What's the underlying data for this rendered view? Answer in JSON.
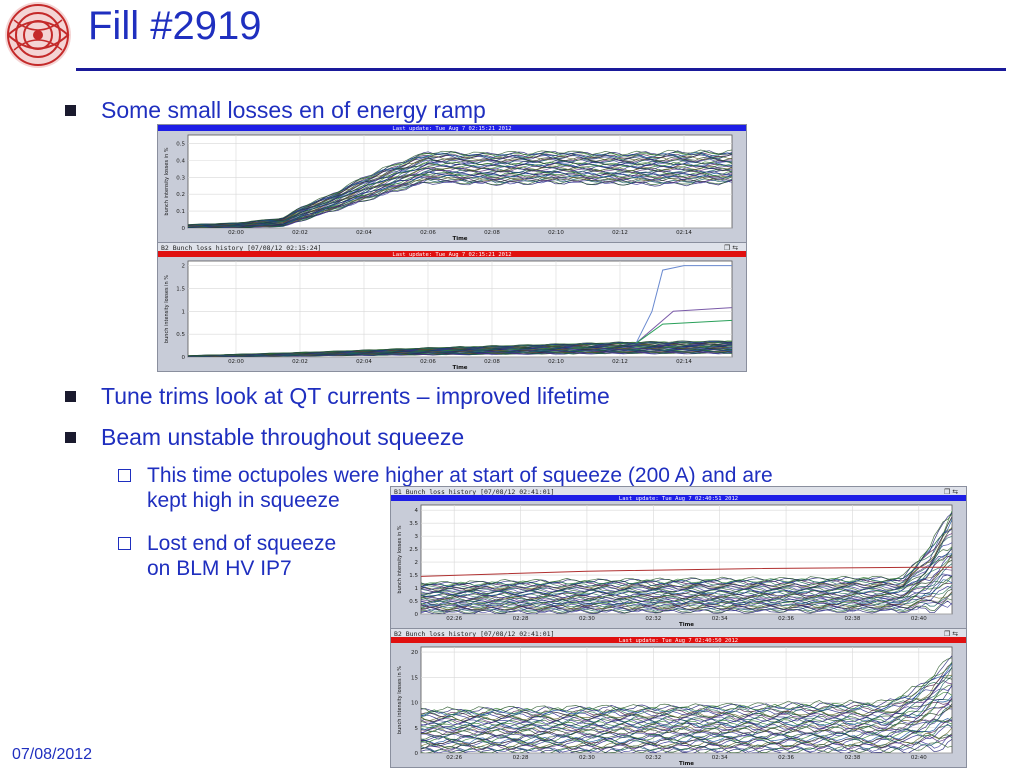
{
  "slide": {
    "title": "Fill #2919",
    "date": "07/08/2012",
    "bullets": [
      {
        "text": "Some small losses en of energy ramp"
      },
      {
        "text": "Tune trims look at QT currents – improved lifetime"
      },
      {
        "text": "Beam unstable throughout squeeze"
      }
    ],
    "subbullets": [
      {
        "line1": "This time octupoles were higher at start of squeeze (200 A) and are",
        "line2": "kept high in squeeze"
      },
      {
        "line1": "Lost end of squeeze",
        "line2": "on BLM HV IP7"
      }
    ]
  },
  "chart_data": [
    {
      "type": "line",
      "panel_title": "",
      "update_label": "Last update: Tue Aug  7 02:15:21 2012",
      "update_bar_color": "#1e1ee6",
      "ylabel": "bunch intensity losses in %",
      "xlabel": "Time",
      "x_ticks": [
        "02:00",
        "02:02",
        "02:04",
        "02:06",
        "02:08",
        "02:10",
        "02:12",
        "02:14"
      ],
      "y_ticks": [
        "0",
        "0.1",
        "0.2",
        "0.3",
        "0.4",
        "0.5"
      ],
      "ylim": [
        0,
        0.55
      ],
      "x_range": [
        "01:58:30",
        "02:15:30"
      ],
      "envelope": {
        "x": [
          "01:58:30",
          "02:00:00",
          "02:01:30",
          "02:02:00",
          "02:03:00",
          "02:04:00",
          "02:05:00",
          "02:06:00",
          "02:08:00",
          "02:10:00",
          "02:12:00",
          "02:14:00",
          "02:15:30"
        ],
        "upper": [
          0.02,
          0.03,
          0.06,
          0.12,
          0.2,
          0.3,
          0.38,
          0.45,
          0.44,
          0.45,
          0.44,
          0.45,
          0.45
        ],
        "lower": [
          0.0,
          0.0,
          0.01,
          0.04,
          0.1,
          0.16,
          0.22,
          0.27,
          0.26,
          0.27,
          0.26,
          0.26,
          0.27
        ]
      },
      "grid": true
    },
    {
      "type": "line",
      "panel_title": "B2 Bunch loss history  [07/08/12 02:15:24]",
      "update_label": "Last update: Tue Aug  7 02:15:21 2012",
      "update_bar_color": "#e01010",
      "ylabel": "bunch intensity losses in %",
      "xlabel": "Time",
      "x_ticks": [
        "02:00",
        "02:02",
        "02:04",
        "02:06",
        "02:08",
        "02:10",
        "02:12",
        "02:14"
      ],
      "y_ticks": [
        "0",
        "0.5",
        "1",
        "1.5",
        "2"
      ],
      "ylim": [
        0,
        2.1
      ],
      "x_range": [
        "01:58:30",
        "02:15:30"
      ],
      "envelope": {
        "x": [
          "01:58:30",
          "02:02:00",
          "02:06:00",
          "02:10:00",
          "02:12:00",
          "02:15:30"
        ],
        "upper": [
          0.03,
          0.1,
          0.2,
          0.28,
          0.32,
          0.35
        ],
        "lower": [
          0.0,
          0.02,
          0.05,
          0.07,
          0.08,
          0.08
        ]
      },
      "highlighted_series": [
        {
          "color": "#6a8ad0",
          "x": [
            "02:12:30",
            "02:13:00",
            "02:13:20",
            "02:14:00",
            "02:15:30"
          ],
          "y": [
            0.3,
            1.0,
            1.9,
            2.0,
            2.0
          ]
        },
        {
          "color": "#7a5aa8",
          "x": [
            "02:12:30",
            "02:13:10",
            "02:13:40",
            "02:15:30"
          ],
          "y": [
            0.3,
            0.7,
            1.0,
            1.08
          ]
        },
        {
          "color": "#2aa05a",
          "x": [
            "02:12:30",
            "02:13:20",
            "02:15:30"
          ],
          "y": [
            0.3,
            0.72,
            0.8
          ]
        }
      ],
      "grid": true
    },
    {
      "type": "line",
      "panel_title": "B1 Bunch loss history  [07/08/12 02:41:01]",
      "update_label": "Last update: Tue Aug  7 02:40:51 2012",
      "update_bar_color": "#1e1ee6",
      "ylabel": "bunch intensity losses in %",
      "xlabel": "Time",
      "x_ticks": [
        "02:26",
        "02:28",
        "02:30",
        "02:32",
        "02:34",
        "02:36",
        "02:38",
        "02:40"
      ],
      "y_ticks": [
        "0",
        "0.5",
        "1",
        "1.5",
        "2",
        "2.5",
        "3",
        "3.5",
        "4"
      ],
      "ylim": [
        0,
        4.2
      ],
      "x_range": [
        "02:25:00",
        "02:41:00"
      ],
      "envelope": {
        "x": [
          "02:25:00",
          "02:30:00",
          "02:35:00",
          "02:39:30",
          "02:40:20",
          "02:41:00"
        ],
        "upper": [
          1.2,
          1.3,
          1.35,
          1.4,
          2.6,
          4.0
        ],
        "lower": [
          0.05,
          0.08,
          0.1,
          0.12,
          0.2,
          0.3
        ]
      },
      "highlighted_series": [
        {
          "color": "#b03030",
          "x": [
            "02:25:00",
            "02:30:00",
            "02:35:00",
            "02:40:00",
            "02:41:00"
          ],
          "y": [
            1.45,
            1.65,
            1.75,
            1.8,
            1.8
          ]
        }
      ],
      "grid": true
    },
    {
      "type": "line",
      "panel_title": "B2 Bunch loss history  [07/08/12 02:41:01]",
      "update_label": "Last update: Tue Aug  7 02:40:50 2012",
      "update_bar_color": "#e01010",
      "ylabel": "bunch intensity losses in %",
      "xlabel": "Time",
      "x_ticks": [
        "02:26",
        "02:28",
        "02:30",
        "02:32",
        "02:34",
        "02:36",
        "02:38",
        "02:40"
      ],
      "y_ticks": [
        "0",
        "5",
        "10",
        "15",
        "20"
      ],
      "ylim": [
        0,
        21
      ],
      "x_range": [
        "02:25:00",
        "02:41:00"
      ],
      "envelope": {
        "x": [
          "02:25:00",
          "02:30:00",
          "02:35:00",
          "02:39:00",
          "02:40:00",
          "02:41:00"
        ],
        "upper": [
          8.5,
          9.0,
          9.5,
          10.0,
          13.0,
          19.0
        ],
        "lower": [
          0.1,
          0.2,
          0.3,
          0.4,
          0.8,
          1.5
        ]
      },
      "grid": true
    }
  ]
}
